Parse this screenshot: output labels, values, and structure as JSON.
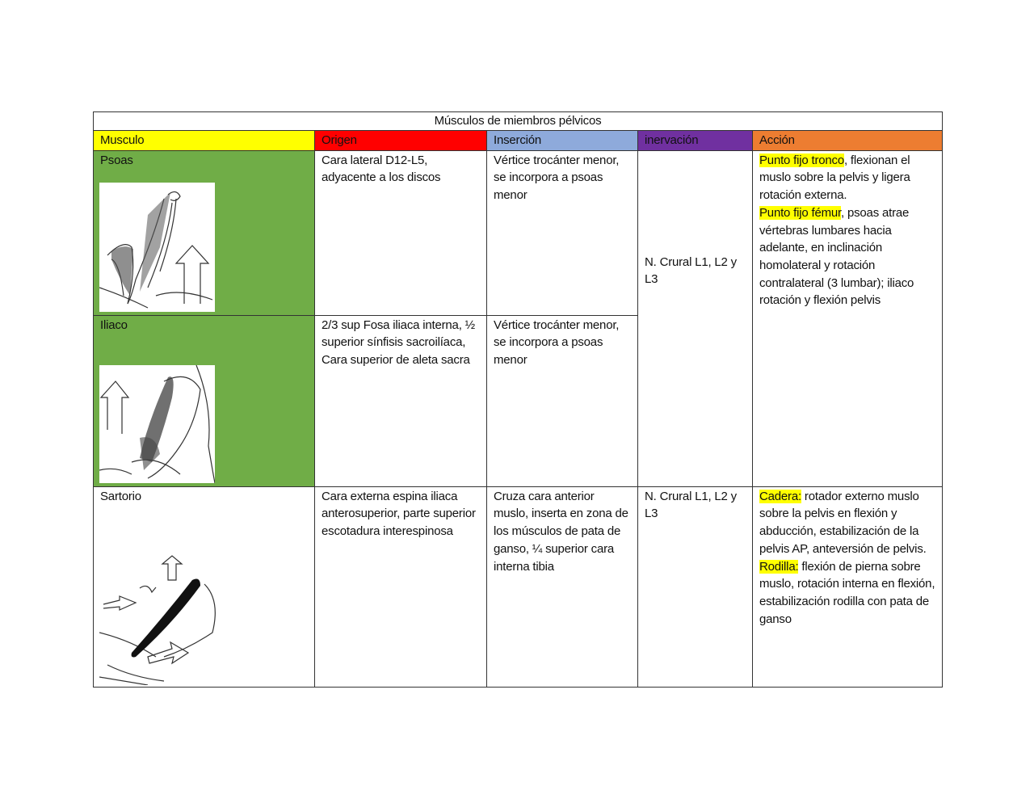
{
  "table": {
    "title": "Músculos de miembros pélvicos",
    "header": [
      "Musculo",
      "Origen",
      "Inserción",
      "inervación",
      "Acción"
    ],
    "rows": [
      {
        "musculo": "Psoas",
        "origen": "Cara lateral D12-L5, adyacente a los discos",
        "insercion": "Vértice trocánter menor, se incorpora a psoas menor"
      },
      {
        "musculo": "Iliaco",
        "origen": "2/3 sup Fosa iliaca interna, ½ superior sínfisis sacroilíaca, Cara superior de aleta sacra",
        "insercion": "Vértice trocánter menor, se incorpora a psoas menor"
      },
      {
        "musculo": "Sartorio",
        "origen": "Cara externa espina iliaca anterosuperior, parte superior escotadura interespinosa",
        "insercion": "Cruza cara anterior muslo, inserta en zona de los músculos de pata de ganso, ¼ superior cara interna tibia",
        "inervacion": "N. Crural L1, L2 y L3",
        "accion": [
          {
            "highlight": "Cadera:",
            "text": " rotador externo muslo sobre la pelvis en flexión y abducción, estabilización de la pelvis AP, anteversión de pelvis."
          },
          {
            "highlight": "Rodilla:",
            "text": " flexión de pierna sobre muslo, rotación interna en flexión, estabilización rodilla con pata de ganso"
          }
        ]
      }
    ],
    "shared": {
      "inervacion": "N. Crural L1, L2 y L3",
      "accion": [
        {
          "highlight": "Punto fijo tronco",
          "text": ", flexionan el muslo sobre la pelvis y ligera rotación externa."
        },
        {
          "highlight": "Punto fijo fémur",
          "text": ", psoas atrae vértebras lumbares hacia adelante, en inclinación homolateral y rotación contralateral (3 lumbar); iliaco rotación y flexión pelvis"
        }
      ]
    }
  }
}
